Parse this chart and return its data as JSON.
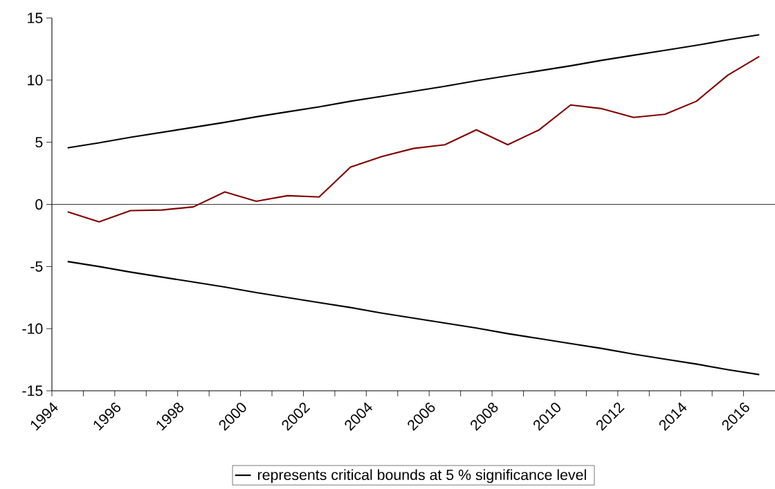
{
  "chart_data": {
    "type": "line",
    "x": [
      1994.5,
      1995.5,
      1996.5,
      1997.5,
      1998.5,
      1999.5,
      2000.5,
      2001.5,
      2002.5,
      2003.5,
      2004.5,
      2005.5,
      2006.5,
      2007.5,
      2008.5,
      2009.5,
      2010.5,
      2011.5,
      2012.5,
      2013.5,
      2014.5,
      2015.5,
      2016.5
    ],
    "series": [
      {
        "color": "#800000",
        "values": [
          -0.6,
          -1.4,
          -0.5,
          -0.45,
          -0.2,
          1.0,
          0.25,
          0.7,
          0.6,
          3.0,
          3.85,
          4.5,
          4.8,
          6.0,
          4.8,
          6.0,
          8.0,
          7.7,
          7.0,
          7.25,
          8.3,
          10.4,
          11.9
        ]
      },
      {
        "name": "represents critical bounds at 5 % significance level",
        "color": "#000000",
        "values": [
          4.55,
          4.95,
          5.4,
          5.8,
          6.2,
          6.6,
          7.05,
          7.45,
          7.85,
          8.3,
          8.7,
          9.1,
          9.5,
          9.95,
          10.35,
          10.75,
          11.15,
          11.6,
          12.0,
          12.4,
          12.8,
          13.25,
          13.65
        ]
      },
      {
        "color": "#000000",
        "values": [
          -4.6,
          -5.0,
          -5.45,
          -5.85,
          -6.25,
          -6.65,
          -7.1,
          -7.5,
          -7.9,
          -8.3,
          -8.75,
          -9.15,
          -9.55,
          -9.95,
          -10.4,
          -10.8,
          -11.2,
          -11.6,
          -12.05,
          -12.45,
          -12.85,
          -13.3,
          -13.7
        ]
      }
    ],
    "xlim": [
      1994,
      2017
    ],
    "ylim": [
      -15,
      15
    ],
    "xticks": [
      1994,
      {
        "value": 1995,
        "label": null
      },
      1996,
      {
        "value": 1997,
        "label": null
      },
      1998,
      {
        "value": 1999,
        "label": null
      },
      2000,
      {
        "value": 2001,
        "label": null
      },
      2002,
      {
        "value": 2003,
        "label": null
      },
      2004,
      {
        "value": 2005,
        "label": null
      },
      2006,
      {
        "value": 2007,
        "label": null
      },
      2008,
      {
        "value": 2009,
        "label": null
      },
      2010,
      {
        "value": 2011,
        "label": null
      },
      2012,
      {
        "value": 2013,
        "label": null
      },
      2014,
      {
        "value": 2015,
        "label": null
      },
      2016
    ],
    "yticks": [
      -15,
      -10,
      -5,
      0,
      5,
      10,
      15
    ],
    "ref_lines": [
      {
        "axis": "y",
        "value": 0,
        "color": "#000000"
      }
    ],
    "legend": "bottom"
  }
}
